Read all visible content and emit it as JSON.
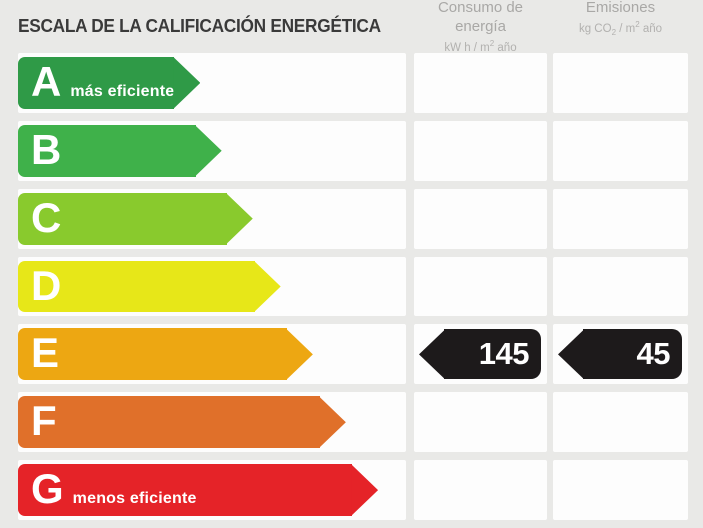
{
  "title": "ESCALA DE LA CALIFICACIÓN ENERGÉTICA",
  "columns": {
    "consumo": {
      "title": "Consumo de energía",
      "unit_parts": {
        "pre": "kW h / m",
        "sup": "2",
        "post": " año"
      }
    },
    "emisiones": {
      "title": "Emisiones",
      "unit_parts": {
        "pre": "kg CO",
        "sub": "2",
        "mid": " / m",
        "sup": "2",
        "post": " año"
      }
    }
  },
  "scale": {
    "rows": [
      {
        "letter": "A",
        "label": "más eficiente",
        "color": "#2f9a47",
        "width_pct": 45.7
      },
      {
        "letter": "B",
        "label": "",
        "color": "#3fb14a",
        "width_pct": 52.5
      },
      {
        "letter": "C",
        "label": "",
        "color": "#89ca2d",
        "width_pct": 60.5
      },
      {
        "letter": "D",
        "label": "",
        "color": "#e7e718",
        "width_pct": 67.7
      },
      {
        "letter": "E",
        "label": "",
        "color": "#eda712",
        "width_pct": 76.0
      },
      {
        "letter": "F",
        "label": "",
        "color": "#e0702a",
        "width_pct": 84.5
      },
      {
        "letter": "G",
        "label": "menos eficiente",
        "color": "#e52328",
        "width_pct": 92.8
      }
    ]
  },
  "rating": {
    "grade": "E",
    "row_index": 4,
    "consumo_value": "145",
    "emisiones_value": "45",
    "arrow_color": "#1d1a1b"
  },
  "colors": {
    "background": "#e9e9e7",
    "cell": "#fdfdfd",
    "title_text": "#3a3a3a",
    "header_text": "#a9a8a6",
    "arrow_text": "#ffffff"
  },
  "chart_data": {
    "type": "bar",
    "title": "ESCALA DE LA CALIFICACIÓN ENERGÉTICA",
    "orientation": "horizontal",
    "categories": [
      "A",
      "B",
      "C",
      "D",
      "E",
      "F",
      "G"
    ],
    "category_notes": {
      "A": "más eficiente",
      "G": "menos eficiente"
    },
    "values_relative_bar_length_pct": [
      45.7,
      52.5,
      60.5,
      67.7,
      76.0,
      84.5,
      92.8
    ],
    "bar_colors": [
      "#2f9a47",
      "#3fb14a",
      "#89ca2d",
      "#e7e718",
      "#eda712",
      "#e0702a",
      "#e52328"
    ],
    "columns": [
      "Consumo de energía (kW h / m² año)",
      "Emisiones (kg CO₂ / m² año)"
    ],
    "annotations": [
      {
        "row": "E",
        "column": "Consumo de energía (kW h / m² año)",
        "value": 145
      },
      {
        "row": "E",
        "column": "Emisiones (kg CO₂ / m² año)",
        "value": 45
      }
    ],
    "legend": false,
    "grid": false
  }
}
